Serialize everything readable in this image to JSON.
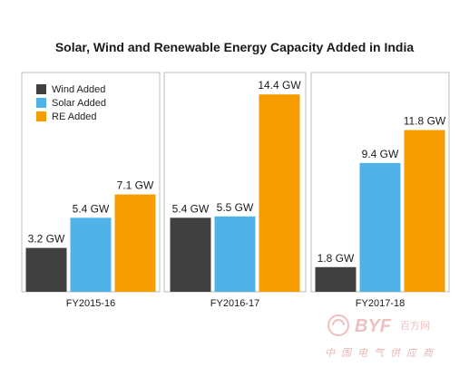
{
  "chart_data": {
    "type": "bar",
    "title": "Solar, Wind and Renewable Energy Capacity Added in India",
    "categories": [
      "FY2015-16",
      "FY2016-17",
      "FY2017-18"
    ],
    "series": [
      {
        "name": "Wind Added",
        "values": [
          3.2,
          5.4,
          1.8
        ],
        "labels": [
          "3.2 GW",
          "5.4 GW",
          "1.8 GW"
        ],
        "color": "#404040"
      },
      {
        "name": "Solar Added",
        "values": [
          5.4,
          5.5,
          9.4
        ],
        "labels": [
          "5.4 GW",
          "5.5 GW",
          "9.4 GW"
        ],
        "color": "#4fb3e8"
      },
      {
        "name": "RE Added",
        "values": [
          7.1,
          14.4,
          11.8
        ],
        "labels": [
          "7.1 GW",
          "14.4 GW",
          "11.8 GW"
        ],
        "color": "#f59c00"
      }
    ],
    "xlabel": "",
    "ylabel": "",
    "ylim": [
      0,
      16
    ],
    "unit": "GW",
    "grid": false,
    "legend_position": "top-left"
  },
  "watermark": {
    "brand": "BYF",
    "brand_cn": "百方网",
    "tagline_cn": "中国电气供应商",
    "color": "#e8b4b4"
  }
}
